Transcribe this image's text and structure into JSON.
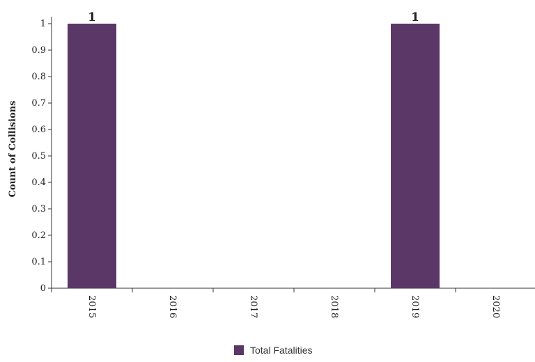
{
  "chart_data": {
    "type": "bar",
    "title": "",
    "xlabel": "",
    "ylabel": "Count of Collisions",
    "categories": [
      "2015",
      "2016",
      "2017",
      "2018",
      "2019",
      "2020"
    ],
    "series": [
      {
        "name": "Total Fatalities",
        "values": [
          1,
          0,
          0,
          0,
          1,
          0
        ],
        "color": "#5b3768"
      }
    ],
    "data_labels": [
      "1",
      "",
      "",
      "",
      "1",
      ""
    ],
    "ylim": [
      0,
      1
    ],
    "y_ticks": [
      "0",
      "0.1",
      "0.2",
      "0.3",
      "0.4",
      "0.5",
      "0.6",
      "0.7",
      "0.8",
      "0.9",
      "1"
    ],
    "grid": false,
    "legend_position": "bottom-center"
  }
}
